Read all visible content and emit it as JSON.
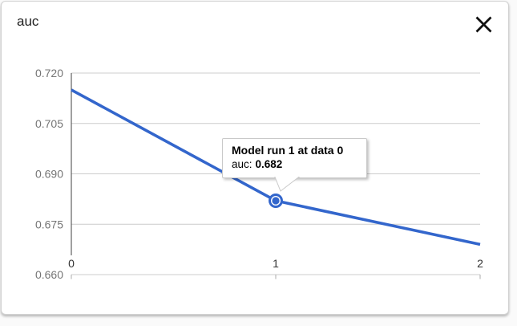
{
  "dialog": {
    "title": "auc",
    "close_icon": "close-x"
  },
  "chart_data": {
    "type": "line",
    "title": "auc",
    "x": [
      0,
      1,
      2
    ],
    "x_ticks": [
      "0",
      "1",
      "2"
    ],
    "y_ticks": [
      "0.720",
      "0.705",
      "0.690",
      "0.675",
      "0.660"
    ],
    "xlim": [
      0,
      2
    ],
    "ylim": [
      0.66,
      0.72
    ],
    "xlabel": "",
    "ylabel": "",
    "grid": "horizontal-only",
    "legend": "none",
    "series": [
      {
        "name": "auc",
        "color": "#3366cc",
        "values": [
          0.715,
          0.682,
          0.669
        ]
      }
    ],
    "selected_point": {
      "series": "auc",
      "x": 1,
      "value": 0.682
    }
  },
  "tooltip": {
    "title": "Model run 1 at data 0",
    "series_label": "auc:",
    "value": "0.682"
  },
  "colors": {
    "line": "#3366cc",
    "grid": "#cccccc",
    "axis": "#424242",
    "tick": "#ababab",
    "y_tick_text": "#757575",
    "x_tick_text": "#333333",
    "title_text": "#1f1f1f"
  }
}
